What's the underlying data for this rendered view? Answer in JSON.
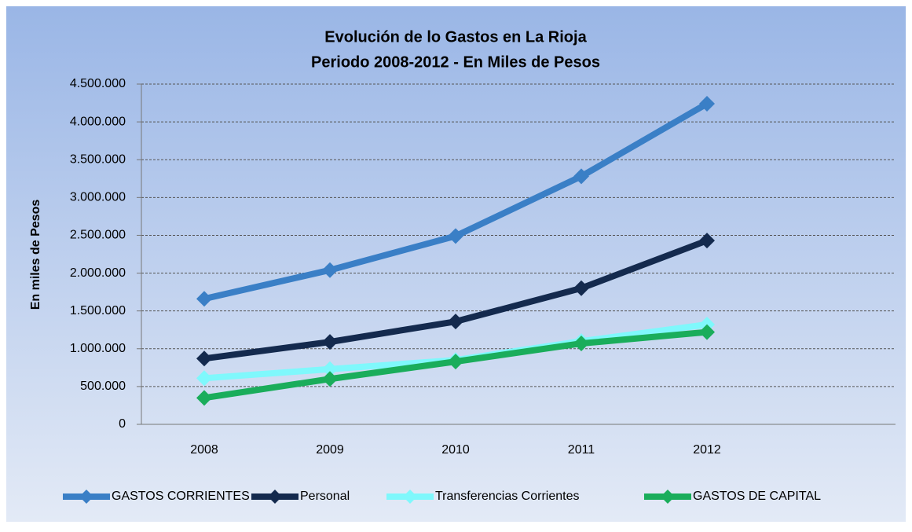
{
  "chart_data": {
    "type": "line",
    "title": "Evolución de lo Gastos en La Rioja",
    "subtitle": "Periodo 2008-2012 - En Miles de Pesos",
    "y_label": "En miles de Pesos",
    "categories": [
      "2008",
      "2009",
      "2010",
      "2011",
      "2012",
      null
    ],
    "series": [
      {
        "name": "GASTOS CORRIENTES",
        "color": "#3a7fc6",
        "values": [
          1660000,
          2040000,
          2490000,
          3280000,
          4240000,
          null
        ]
      },
      {
        "name": "Personal",
        "color": "#142a4e",
        "values": [
          870000,
          1090000,
          1360000,
          1800000,
          2430000,
          null
        ]
      },
      {
        "name": "Transferencias Corrientes",
        "color": "#7ff8fc",
        "values": [
          610000,
          730000,
          850000,
          1100000,
          1320000,
          null
        ]
      },
      {
        "name": "GASTOS DE CAPITAL",
        "color": "#1aad5b",
        "values": [
          350000,
          600000,
          830000,
          1070000,
          1220000,
          null
        ]
      }
    ],
    "ylim": [
      0,
      4500000
    ],
    "yticks": [
      0,
      {
        "value": 500000,
        "label": "500.000"
      },
      {
        "value": 1000000,
        "label": "1.000.000"
      },
      {
        "value": 1500000,
        "label": "1.500.000"
      },
      {
        "value": 2000000,
        "label": "2.000.000"
      },
      {
        "value": 2500000,
        "label": "2.500.000"
      },
      {
        "value": 3000000,
        "label": "3.000.000"
      },
      {
        "value": 3500000,
        "label": "3.500.000"
      },
      {
        "value": 4000000,
        "label": "4.000.000"
      },
      {
        "value": 4500000,
        "label": "4.500.000"
      }
    ],
    "grid": true
  }
}
